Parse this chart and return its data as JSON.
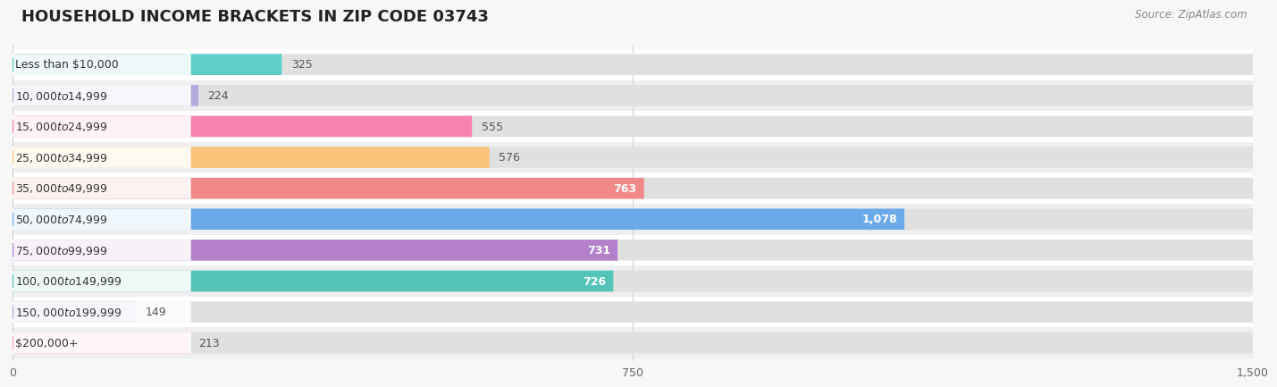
{
  "title": "HOUSEHOLD INCOME BRACKETS IN ZIP CODE 03743",
  "source": "Source: ZipAtlas.com",
  "categories": [
    "Less than $10,000",
    "$10,000 to $14,999",
    "$15,000 to $24,999",
    "$25,000 to $34,999",
    "$35,000 to $49,999",
    "$50,000 to $74,999",
    "$75,000 to $99,999",
    "$100,000 to $149,999",
    "$150,000 to $199,999",
    "$200,000+"
  ],
  "values": [
    325,
    224,
    555,
    576,
    763,
    1078,
    731,
    726,
    149,
    213
  ],
  "bar_colors": [
    "#5ececa",
    "#b3aadd",
    "#f882b0",
    "#f9c47a",
    "#f08888",
    "#6aaae8",
    "#b480cc",
    "#52c4b8",
    "#b3aadd",
    "#f9aac8"
  ],
  "xlim": [
    0,
    1500
  ],
  "xticks": [
    0,
    750,
    1500
  ],
  "row_colors": [
    "#ffffff",
    "#efefef"
  ],
  "bg_bar_color": "#e0e0e0",
  "title_fontsize": 13,
  "label_fontsize": 9,
  "value_fontsize": 9
}
